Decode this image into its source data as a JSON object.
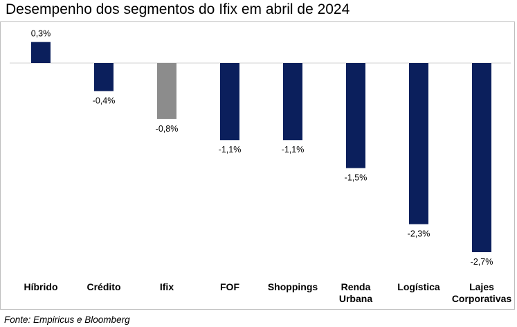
{
  "title": "Desempenho dos segmentos do Ifix em abril de 2024",
  "source": "Fonte: Empiricus e Bloomberg",
  "chart_data": {
    "type": "bar",
    "categories": [
      "Híbrido",
      "Crédito",
      "Ifix",
      "FOF",
      "Shoppings",
      "Renda Urbana",
      "Logística",
      "Lajes Corporativas"
    ],
    "category_lines": [
      [
        "Híbrido"
      ],
      [
        "Crédito"
      ],
      [
        "Ifix"
      ],
      [
        "FOF"
      ],
      [
        "Shoppings"
      ],
      [
        "Renda",
        "Urbana"
      ],
      [
        "Logística"
      ],
      [
        "Lajes",
        "Corporativas"
      ]
    ],
    "values": [
      0.3,
      -0.4,
      -0.8,
      -1.1,
      -1.1,
      -1.5,
      -2.3,
      -2.7
    ],
    "data_labels": [
      "0,3%",
      "-0,4%",
      "-0,8%",
      "-1,1%",
      "-1,1%",
      "-1,5%",
      "-2,3%",
      "-2,7%"
    ],
    "colors": [
      "#0b1f5c",
      "#0b1f5c",
      "#8c8c8c",
      "#0b1f5c",
      "#0b1f5c",
      "#0b1f5c",
      "#0b1f5c",
      "#0b1f5c"
    ],
    "ylim": [
      -2.7,
      0.3
    ],
    "grid": false,
    "legend": "none"
  }
}
